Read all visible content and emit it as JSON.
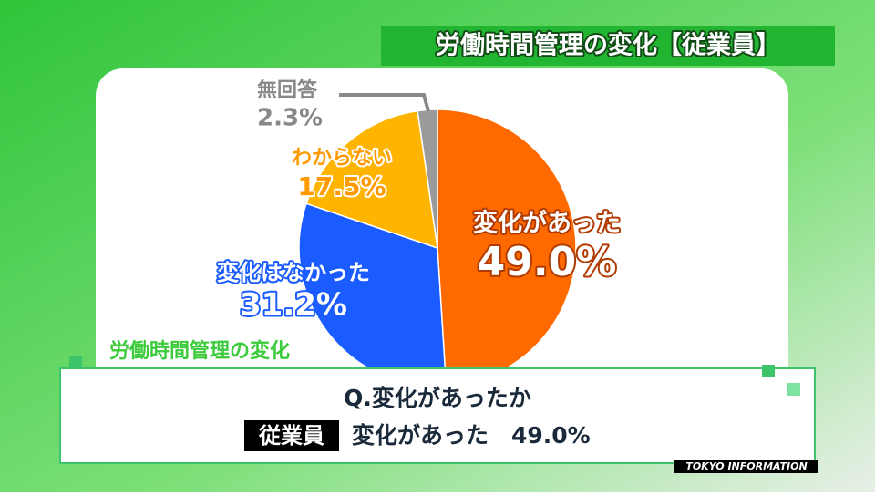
{
  "chart_data": {
    "type": "pie",
    "title": "労働時間管理の変化【従業員】",
    "categories": [
      "変化があった",
      "変化はなかった",
      "わからない",
      "無回答"
    ],
    "values": [
      49.0,
      31.2,
      17.5,
      2.3
    ],
    "value_labels": [
      "49.0%",
      "31.2%",
      "17.5%",
      "2.3%"
    ],
    "colors": [
      "#ff6a00",
      "#1a5cff",
      "#ffb400",
      "#9a9a9a"
    ]
  },
  "caption": {
    "tag": "労働時間管理の変化",
    "question": "Q.変化があったか",
    "badge": "従業員",
    "answer": "変化があった　49.0%"
  },
  "footer": {
    "brand": "TOKYO INFORMATION"
  }
}
